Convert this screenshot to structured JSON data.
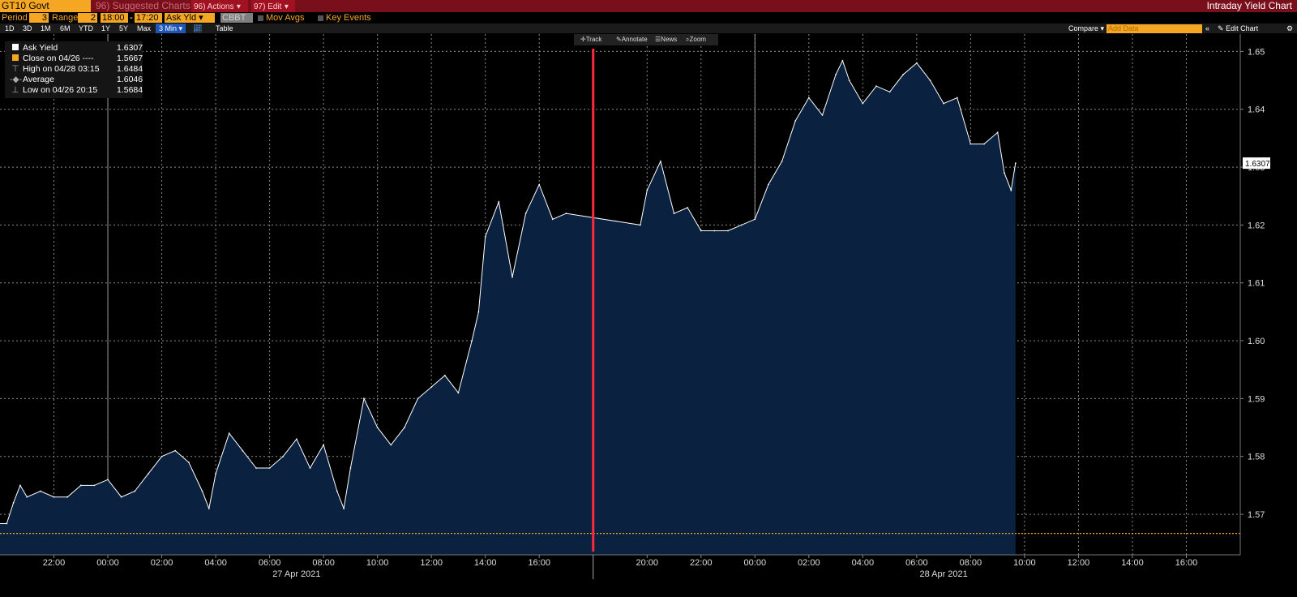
{
  "header": {
    "ticker": "GT10 Govt",
    "suggested": "96) Suggested Charts",
    "actions": "96) Actions",
    "edit": "97) Edit",
    "title": "Intraday Yield Chart"
  },
  "controls": {
    "period_label": "Period",
    "period_value": "3",
    "range_label": "Range",
    "range_value": "2",
    "time_from": "18:00",
    "time_to": "17:20",
    "field": "Ask Yld",
    "source": "CBBT",
    "mov_avgs": "Mov Avgs",
    "key_events": "Key Events"
  },
  "timebar": {
    "buttons": [
      "1D",
      "3D",
      "1M",
      "6M",
      "YTD",
      "1Y",
      "5Y",
      "Max"
    ],
    "interval": "3 Min",
    "table": "Table",
    "compare": "Compare",
    "add_data_placeholder": "Add Data",
    "edit_chart": "Edit Chart"
  },
  "toolbox": {
    "track": "Track",
    "annotate": "Annotate",
    "news": "News",
    "zoom": "Zoom"
  },
  "legend": [
    {
      "label": "Ask Yield",
      "value": "1.6307"
    },
    {
      "label": "Close on 04/26 ----",
      "value": "1.5667"
    },
    {
      "label": "High on 04/28 03:15",
      "value": "1.6484"
    },
    {
      "label": "Average",
      "value": "1.6046"
    },
    {
      "label": "Low on 04/26 20:15",
      "value": "1.5684"
    }
  ],
  "chart_data": {
    "type": "area",
    "series": [
      {
        "name": "Ask Yield",
        "color": "#ffffff",
        "fill": "#0a2140",
        "x": [
          "26 Apr 20:15",
          "26 Apr 20:30",
          "26 Apr 20:45",
          "26 Apr 21:00",
          "26 Apr 21:30",
          "26 Apr 22:00",
          "26 Apr 22:30",
          "26 Apr 23:00",
          "26 Apr 23:30",
          "27 Apr 00:00",
          "27 Apr 00:30",
          "27 Apr 01:00",
          "27 Apr 01:30",
          "27 Apr 02:00",
          "27 Apr 02:30",
          "27 Apr 03:00",
          "27 Apr 03:30",
          "27 Apr 03:45",
          "27 Apr 04:00",
          "27 Apr 04:30",
          "27 Apr 05:00",
          "27 Apr 05:30",
          "27 Apr 06:00",
          "27 Apr 06:30",
          "27 Apr 07:00",
          "27 Apr 07:30",
          "27 Apr 08:00",
          "27 Apr 08:30",
          "27 Apr 08:45",
          "27 Apr 09:00",
          "27 Apr 09:30",
          "27 Apr 10:00",
          "27 Apr 10:30",
          "27 Apr 11:00",
          "27 Apr 11:30",
          "27 Apr 12:00",
          "27 Apr 12:30",
          "27 Apr 13:00",
          "27 Apr 13:30",
          "27 Apr 13:45",
          "27 Apr 14:00",
          "27 Apr 14:30",
          "27 Apr 15:00",
          "27 Apr 15:30",
          "27 Apr 16:00",
          "27 Apr 16:30",
          "27 Apr 17:00",
          "27 Apr 19:45",
          "27 Apr 20:00",
          "27 Apr 20:30",
          "27 Apr 21:00",
          "27 Apr 21:30",
          "27 Apr 22:00",
          "27 Apr 22:30",
          "27 Apr 23:00",
          "27 Apr 23:30",
          "28 Apr 00:00",
          "28 Apr 00:30",
          "28 Apr 01:00",
          "28 Apr 01:30",
          "28 Apr 02:00",
          "28 Apr 02:30",
          "28 Apr 03:00",
          "28 Apr 03:15",
          "28 Apr 03:30",
          "28 Apr 04:00",
          "28 Apr 04:30",
          "28 Apr 05:00",
          "28 Apr 05:30",
          "28 Apr 06:00",
          "28 Apr 06:30",
          "28 Apr 07:00",
          "28 Apr 07:30",
          "28 Apr 08:00",
          "28 Apr 08:30",
          "28 Apr 09:00",
          "28 Apr 09:15",
          "28 Apr 09:30",
          "28 Apr 09:40"
        ],
        "values": [
          1.5684,
          1.572,
          1.575,
          1.573,
          1.574,
          1.573,
          1.573,
          1.575,
          1.575,
          1.576,
          1.573,
          1.574,
          1.577,
          1.58,
          1.581,
          1.579,
          1.574,
          1.571,
          1.577,
          1.584,
          1.581,
          1.578,
          1.578,
          1.58,
          1.583,
          1.578,
          1.582,
          1.574,
          1.571,
          1.578,
          1.59,
          1.585,
          1.582,
          1.585,
          1.59,
          1.592,
          1.594,
          1.591,
          1.6,
          1.605,
          1.618,
          1.624,
          1.611,
          1.622,
          1.627,
          1.621,
          1.622,
          1.62,
          1.626,
          1.631,
          1.622,
          1.623,
          1.619,
          1.619,
          1.619,
          1.62,
          1.621,
          1.627,
          1.631,
          1.638,
          1.642,
          1.639,
          1.646,
          1.6484,
          1.645,
          1.641,
          1.644,
          1.643,
          1.646,
          1.648,
          1.645,
          1.641,
          1.642,
          1.634,
          1.634,
          1.636,
          1.629,
          1.626,
          1.6307
        ]
      }
    ],
    "close_value": 1.5667,
    "ylim": [
      1.563,
      1.653
    ],
    "yticks": [
      "1.57",
      "1.58",
      "1.59",
      "1.60",
      "1.61",
      "1.62",
      "1.63",
      "1.64",
      "1.65"
    ],
    "xlim": [
      "26 Apr 20:00",
      "28 Apr 18:00"
    ],
    "xticks": [
      "22:00",
      "00:00",
      "02:00",
      "04:00",
      "06:00",
      "08:00",
      "10:00",
      "12:00",
      "14:00",
      "16:00",
      "20:00",
      "22:00",
      "00:00",
      "02:00",
      "04:00",
      "06:00",
      "08:00",
      "10:00",
      "12:00",
      "14:00",
      "16:00"
    ],
    "date_labels": [
      "27 Apr 2021",
      "28 Apr 2021"
    ],
    "last_value_label": "1.6307",
    "grid": true,
    "legend_position": "top-left",
    "marker_color": "#ff2a3d",
    "close_line_color": "#f5a623"
  }
}
